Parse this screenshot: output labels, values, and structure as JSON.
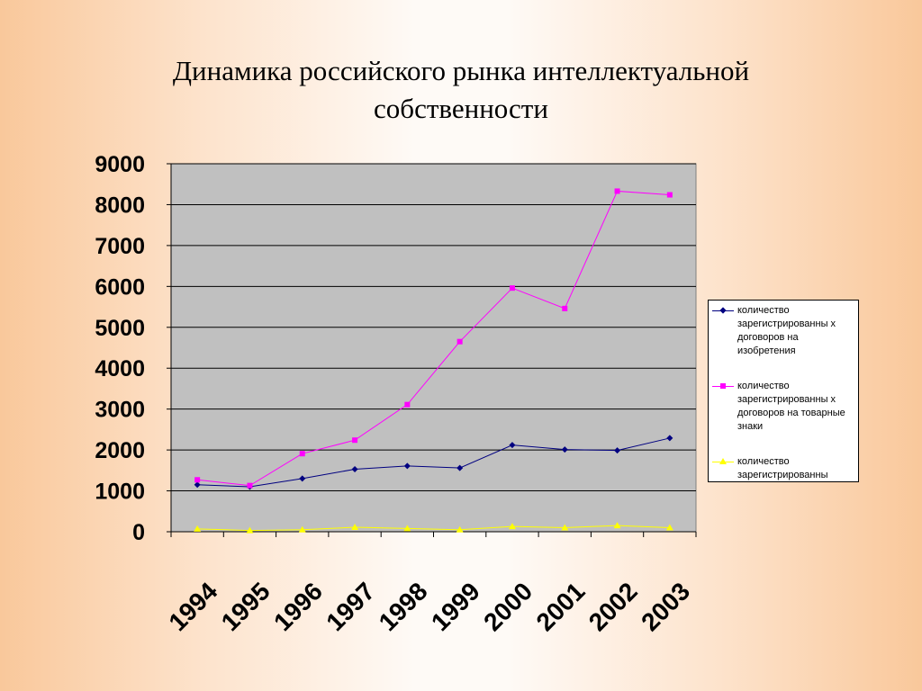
{
  "title_lines": [
    "Динамика российского рынка интеллектуальной",
    "собственности"
  ],
  "chart_data": {
    "type": "line",
    "title": "",
    "xlabel": "",
    "ylabel": "",
    "categories": [
      "1994",
      "1995",
      "1996",
      "1997",
      "1998",
      "1999",
      "2000",
      "2001",
      "2002",
      "2003"
    ],
    "ylim": [
      0,
      9000
    ],
    "yticks": [
      "0",
      "1000",
      "2000",
      "3000",
      "4000",
      "5000",
      "6000",
      "7000",
      "8000",
      "9000"
    ],
    "grid": true,
    "legend_position": "right",
    "plot_background": "#c0c0c0",
    "series": [
      {
        "name": "количество зарегистрированных договоров на изобретения",
        "legend_label": "количество зарегистрированны х договоров на изобретения",
        "color": "#000080",
        "marker": "diamond",
        "values": [
          1150,
          1100,
          1300,
          1530,
          1610,
          1560,
          2120,
          2010,
          1990,
          2290
        ]
      },
      {
        "name": "количество зарегистрированных договоров на товарные знаки",
        "legend_label": "количество зарегистрированны х договоров на товарные знаки",
        "color": "#ff00ff",
        "marker": "square",
        "values": [
          1270,
          1130,
          1910,
          2240,
          3110,
          4650,
          5960,
          5460,
          8330,
          8240
        ]
      },
      {
        "name": "количество зарегистрированны",
        "legend_label": "количество зарегистрированны",
        "color": "#ffff00",
        "marker": "triangle",
        "values": [
          70,
          30,
          50,
          110,
          80,
          50,
          130,
          100,
          150,
          100
        ]
      }
    ]
  }
}
